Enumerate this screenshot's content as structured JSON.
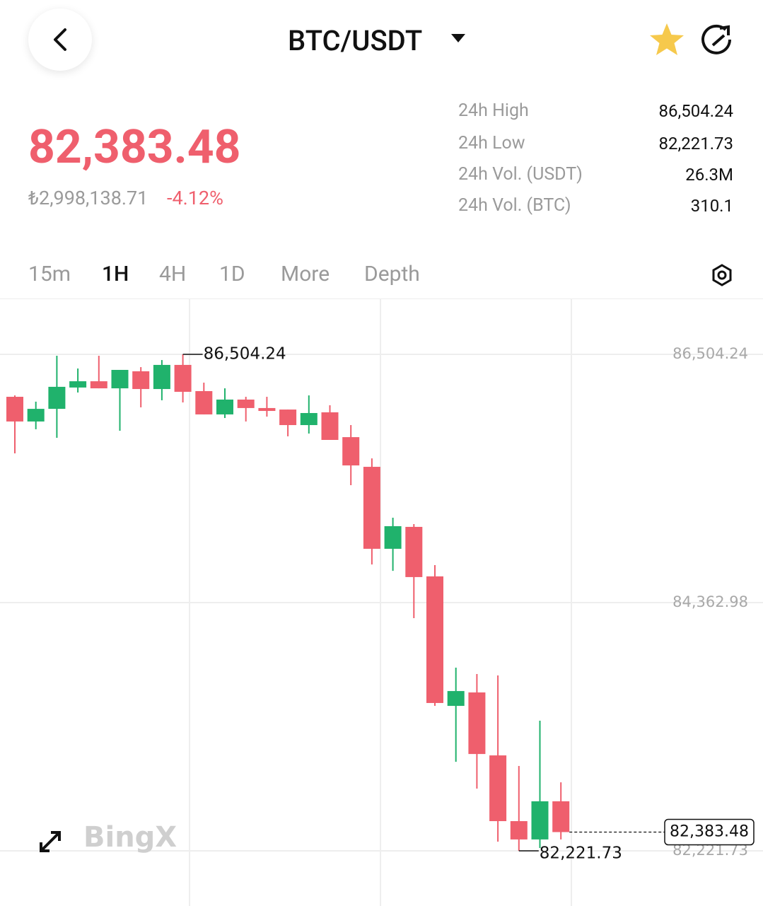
{
  "header": {
    "title": "BTC/USDT"
  },
  "ticker": {
    "price": "82,383.48",
    "local_price": "₺2,998,138.71",
    "change": "-4.12%"
  },
  "stats": [
    {
      "label": "24h High",
      "value": "86,504.24"
    },
    {
      "label": "24h Low",
      "value": "82,221.73"
    },
    {
      "label": "24h Vol. (USDT)",
      "value": "26.3M"
    },
    {
      "label": "24h Vol. (BTC)",
      "value": "310.1"
    }
  ],
  "tabs": [
    "15m",
    "1H",
    "4H",
    "1D",
    "More",
    "Depth"
  ],
  "watermark": "BingX",
  "chart_data": {
    "type": "candlestick",
    "up_color": "#20b26c",
    "down_color": "#ef5f6d",
    "ylim": [
      81746,
      86980
    ],
    "yticks": [
      {
        "value": 86504.24,
        "label": "86,504.24"
      },
      {
        "value": 84362.98,
        "label": "84,362.98"
      },
      {
        "value": 82221.73,
        "label": "82,221.73"
      }
    ],
    "grid": true,
    "candles": [
      {
        "open": 86138,
        "high": 86150,
        "low": 85650,
        "close": 85925
      },
      {
        "open": 85925,
        "high": 86096,
        "low": 85858,
        "close": 86034
      },
      {
        "open": 86034,
        "high": 86492,
        "low": 85784,
        "close": 86224
      },
      {
        "open": 86218,
        "high": 86382,
        "low": 86175,
        "close": 86272
      },
      {
        "open": 86272,
        "high": 86492,
        "low": 86211,
        "close": 86211
      },
      {
        "open": 86211,
        "high": 86370,
        "low": 85845,
        "close": 86370
      },
      {
        "open": 86358,
        "high": 86394,
        "low": 86047,
        "close": 86205
      },
      {
        "open": 86205,
        "high": 86455,
        "low": 86108,
        "close": 86413
      },
      {
        "open": 86413,
        "high": 86504.24,
        "low": 86089,
        "close": 86181
      },
      {
        "open": 86187,
        "high": 86260,
        "low": 85986,
        "close": 85986
      },
      {
        "open": 85986,
        "high": 86211,
        "low": 85955,
        "close": 86114
      },
      {
        "open": 86114,
        "high": 86138,
        "low": 85925,
        "close": 86041
      },
      {
        "open": 86041,
        "high": 86138,
        "low": 85967,
        "close": 86016
      },
      {
        "open": 86028,
        "high": 86028,
        "low": 85797,
        "close": 85894
      },
      {
        "open": 85894,
        "high": 86150,
        "low": 85821,
        "close": 85998
      },
      {
        "open": 86004,
        "high": 86065,
        "low": 85766,
        "close": 85766
      },
      {
        "open": 85790,
        "high": 85894,
        "low": 85376,
        "close": 85546
      },
      {
        "open": 85534,
        "high": 85607,
        "low": 84692,
        "close": 84827
      },
      {
        "open": 84827,
        "high": 85095,
        "low": 84637,
        "close": 85022
      },
      {
        "open": 85016,
        "high": 85040,
        "low": 84229,
        "close": 84583
      },
      {
        "open": 84589,
        "high": 84686,
        "low": 83472,
        "close": 83497
      },
      {
        "open": 83472,
        "high": 83802,
        "low": 82990,
        "close": 83600
      },
      {
        "open": 83588,
        "high": 83747,
        "low": 82759,
        "close": 83057
      },
      {
        "open": 83045,
        "high": 83735,
        "low": 82301,
        "close": 82478
      },
      {
        "open": 82478,
        "high": 82954,
        "low": 82221.73,
        "close": 82320
      },
      {
        "open": 82320,
        "high": 83344,
        "low": 82246,
        "close": 82649
      },
      {
        "open": 82649,
        "high": 82813,
        "low": 82320,
        "close": 82383.48
      }
    ],
    "annotations": [
      {
        "value": 86504.24,
        "label": "86,504.24"
      },
      {
        "value": 82221.73,
        "label": "82,221.73"
      }
    ],
    "last_price": {
      "value": 82383.48,
      "label": "82,383.48"
    }
  }
}
